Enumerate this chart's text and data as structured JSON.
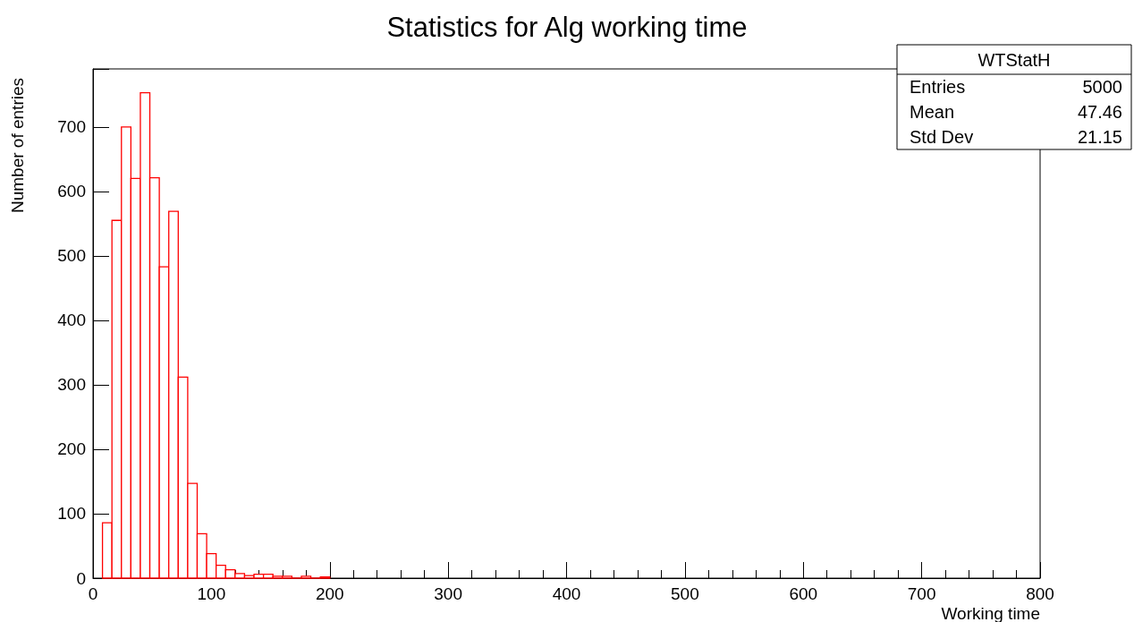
{
  "chart_data": {
    "type": "histogram",
    "title": "Statistics for Alg working time",
    "xlabel": "Working time",
    "ylabel": "Number of entries",
    "bins": [
      8,
      16,
      24,
      32,
      40,
      48,
      56,
      64,
      72,
      80,
      88,
      96,
      104,
      112,
      120,
      128,
      136,
      144,
      152,
      160,
      168,
      176,
      184,
      192,
      200
    ],
    "values": [
      86,
      555,
      700,
      620,
      753,
      621,
      483,
      569,
      312,
      147,
      69,
      38,
      20,
      13,
      7,
      4,
      6,
      6,
      3,
      3,
      0,
      3,
      0,
      2
    ],
    "color": "#ff0000",
    "xlim": [
      0,
      800
    ],
    "xticks": [
      0,
      100,
      200,
      300,
      400,
      500,
      600,
      700,
      800
    ],
    "ylim": [
      0,
      790
    ],
    "yticks": [
      0,
      100,
      200,
      300,
      400,
      500,
      600,
      700
    ],
    "grid": false,
    "annotations": [
      "WTStatH",
      "Entries",
      "5000",
      "Mean",
      "47.46",
      "Std Dev",
      "21.15"
    ]
  }
}
